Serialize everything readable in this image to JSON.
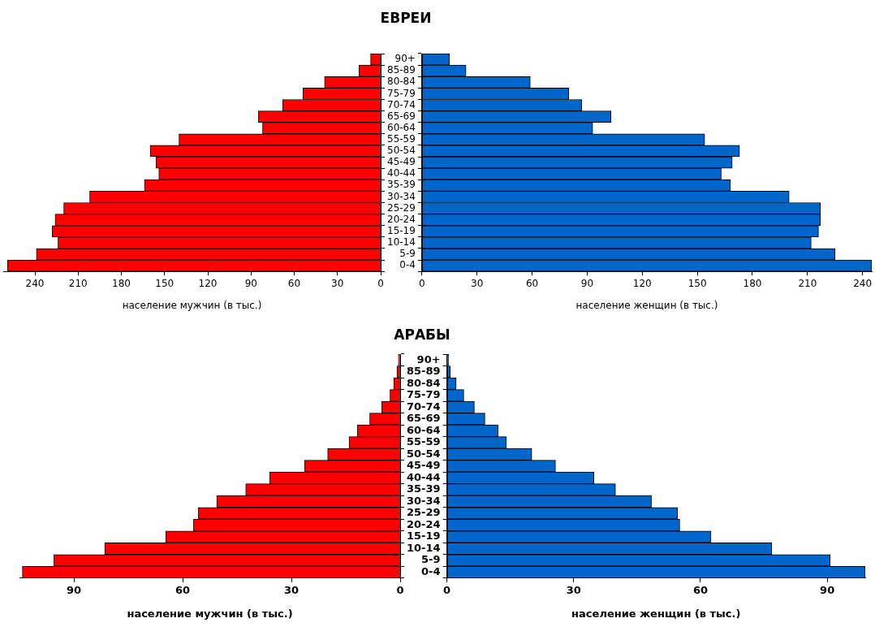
{
  "chart_data": [
    {
      "type": "bar",
      "orientation": "horizontal",
      "xlabel": "население мужчин (в тыс.)",
      "tick_labels": "x",
      "legend": false,
      "categories": [
        null,
        null,
        null,
        null,
        null,
        null,
        null,
        null,
        null,
        null,
        null,
        null,
        null,
        null,
        null,
        null,
        null,
        null,
        null
      ],
      "series": [
        {
          "color": "#ff0000",
          "values": [
            7,
            15,
            39,
            54,
            68,
            85,
            82,
            140,
            160,
            156,
            154,
            164,
            202,
            220,
            226,
            228,
            224,
            239,
            259
          ]
        }
      ],
      "xlim": [
        262,
        0
      ],
      "xticks": [
        240,
        210,
        180,
        150,
        120,
        90,
        60,
        30,
        0
      ]
    },
    {
      "type": "bar",
      "orientation": "horizontal",
      "title": "ЕВРЕИ",
      "xlabel": "население женщин (в тыс.)",
      "legend": false,
      "categories": [
        "90+",
        "85-89",
        "80-84",
        "75-79",
        "70-74",
        "65-69",
        "60-64",
        "55-59",
        "50-54",
        "45-49",
        "40-44",
        "35-39",
        "30-34",
        "25-29",
        "20-24",
        "15-19",
        "10-14",
        "5-9",
        "0-4"
      ],
      "series": [
        {
          "color": "#0066cc",
          "values": [
            15,
            24,
            59,
            80,
            87,
            103,
            93,
            154,
            173,
            169,
            163,
            168,
            200,
            217,
            217,
            216,
            212,
            225,
            245
          ]
        }
      ],
      "xlim": [
        0,
        245
      ],
      "xticks": [
        0,
        30,
        60,
        90,
        120,
        150,
        180,
        210,
        240
      ]
    },
    {
      "type": "bar",
      "orientation": "horizontal",
      "xlabel": "население мужчин (в тыс.)",
      "tick_labels": "x",
      "legend": false,
      "categories": [
        null,
        null,
        null,
        null,
        null,
        null,
        null,
        null,
        null,
        null,
        null,
        null,
        null,
        null,
        null,
        null,
        null,
        null,
        null
      ],
      "series": [
        {
          "color": "#ff0000",
          "values": [
            0.5,
            0.9,
            1.8,
            2.8,
            5.1,
            8.4,
            11.8,
            14.1,
            20,
            26.4,
            36,
            42.6,
            50.6,
            55.7,
            57,
            64.7,
            81.5,
            95.5,
            104.2
          ]
        }
      ],
      "xlim": [
        105,
        0
      ],
      "xticks": [
        90,
        60,
        30,
        0
      ]
    },
    {
      "type": "bar",
      "orientation": "horizontal",
      "title": "АРАБЫ",
      "xlabel": "население женщин (в тыс.)",
      "legend": false,
      "categories": [
        "90+",
        "85-89",
        "80-84",
        "75-79",
        "70-74",
        "65-69",
        "60-64",
        "55-59",
        "50-54",
        "45-49",
        "40-44",
        "35-39",
        "30-34",
        "25-29",
        "20-24",
        "15-19",
        "10-14",
        "5-9",
        "0-4"
      ],
      "series": [
        {
          "color": "#0066cc",
          "values": [
            0.4,
            0.8,
            2.2,
            4,
            6.5,
            9,
            12.1,
            14.1,
            20.1,
            25.7,
            34.8,
            39.9,
            48.4,
            54.6,
            55.1,
            62.5,
            76.9,
            90.7,
            99
          ]
        }
      ],
      "xlim": [
        0,
        99
      ],
      "xticks": [
        0,
        30,
        60,
        90
      ]
    }
  ]
}
